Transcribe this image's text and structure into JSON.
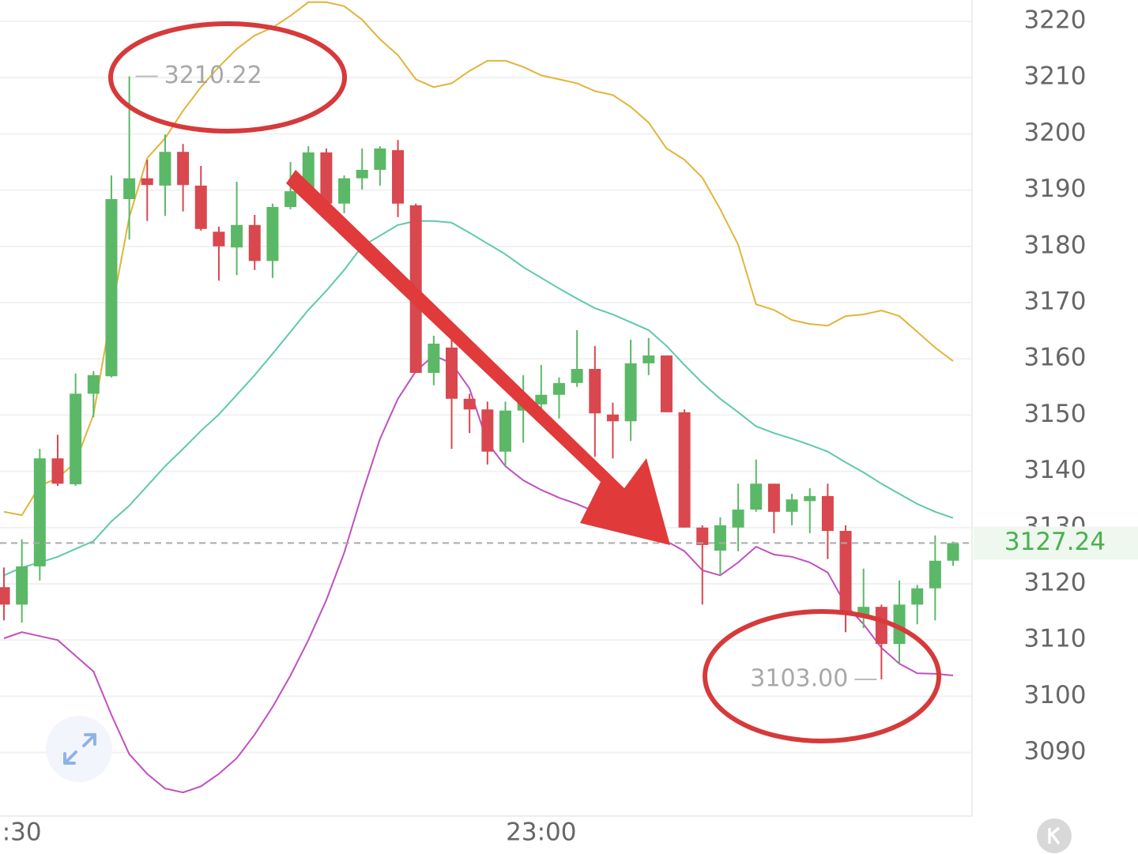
{
  "chart_data": {
    "type": "candlestick",
    "categories": [
      null,
      ":30",
      null,
      null,
      null,
      null,
      null,
      null,
      null,
      null,
      null,
      null,
      null,
      null,
      null,
      null,
      null,
      null,
      null,
      null,
      null,
      null,
      null,
      null,
      null,
      null,
      null,
      null,
      null,
      null,
      "23:00",
      null,
      null,
      null,
      null,
      null,
      null,
      null,
      null,
      null,
      null,
      null,
      null,
      null,
      null,
      null,
      null,
      null,
      null,
      null,
      null,
      null,
      null,
      null
    ],
    "open": [
      3119.4,
      3116.3,
      3123.1,
      3142.3,
      3137.7,
      3153.8,
      3156.9,
      3188.4,
      3192.1,
      3190.8,
      3196.8,
      3190.8,
      3182.6,
      3179.8,
      3183.8,
      3177.4,
      3187.0,
      3189.8,
      3196.7,
      3187.6,
      3192.1,
      3193.6,
      3197.1,
      3187.3,
      3157.5,
      3162.0,
      3152.9,
      3151.0,
      3143.5,
      3150.8,
      3151.9,
      3153.6,
      3155.7,
      3158.2,
      3150.1,
      3148.9,
      3159.2,
      3160.6,
      3150.5,
      3130.0,
      3125.9,
      3130.0,
      3133.2,
      3137.8,
      3132.8,
      3134.7,
      3135.6,
      3129.4,
      3114.5,
      3115.9,
      3109.3,
      3116.3,
      3119.2,
      3124.1
    ],
    "high": [
      3122.9,
      3127.9,
      3144.0,
      3146.5,
      3157.4,
      3157.8,
      3192.6,
      3210.22,
      3195.4,
      3199.9,
      3198.2,
      3194.3,
      3183.5,
      3191.5,
      3185.6,
      3187.6,
      3195.0,
      3197.8,
      3197.4,
      3192.6,
      3197.4,
      3197.8,
      3198.9,
      3187.6,
      3164.1,
      3164.1,
      3153.8,
      3152.4,
      3152.4,
      3157.1,
      3158.9,
      3156.7,
      3165.1,
      3162.3,
      3152.2,
      3163.4,
      3163.7,
      3160.6,
      3151.0,
      3130.4,
      3131.8,
      3137.8,
      3142.1,
      3137.8,
      3136.0,
      3137.0,
      3137.8,
      3130.4,
      3122.7,
      3116.3,
      3120.6,
      3119.8,
      3128.6,
      3127.5
    ],
    "low": [
      3113.5,
      3113.1,
      3120.6,
      3137.4,
      3137.4,
      3149.6,
      3156.7,
      3181.2,
      3184.5,
      3185.4,
      3186.2,
      3182.8,
      3173.9,
      3174.9,
      3175.8,
      3174.4,
      3186.6,
      3189.4,
      3187.3,
      3185.9,
      3190.1,
      3190.8,
      3185.2,
      3157.5,
      3155.3,
      3144.0,
      3146.8,
      3141.2,
      3140.9,
      3145.1,
      3149.4,
      3149.4,
      3155.0,
      3142.6,
      3142.3,
      3145.4,
      3157.1,
      3150.5,
      3130.0,
      3116.3,
      3121.5,
      3125.8,
      3132.8,
      3129.0,
      3130.4,
      3129.0,
      3124.4,
      3111.4,
      3112.1,
      3103.0,
      3105.8,
      3112.8,
      3113.5,
      3123.2
    ],
    "close": [
      3116.3,
      3123.1,
      3142.3,
      3137.8,
      3153.8,
      3157.1,
      3188.4,
      3192.1,
      3190.9,
      3196.8,
      3190.9,
      3183.1,
      3180.0,
      3183.8,
      3177.4,
      3187.0,
      3189.8,
      3196.7,
      3187.6,
      3192.1,
      3193.6,
      3197.4,
      3187.6,
      3157.5,
      3162.7,
      3152.9,
      3151.0,
      3143.5,
      3150.8,
      3153.1,
      3153.6,
      3155.7,
      3158.2,
      3150.3,
      3148.9,
      3159.2,
      3160.6,
      3150.5,
      3130.0,
      3126.9,
      3130.4,
      3133.2,
      3137.8,
      3132.8,
      3135.0,
      3135.6,
      3129.4,
      3114.5,
      3115.9,
      3109.3,
      3116.3,
      3119.2,
      3124.1,
      3127.24
    ],
    "up_color": "#5bb867",
    "down_color": "#d9474f",
    "lines": [
      {
        "color": "#e3b43a",
        "values": [
          3132.8,
          3132.2,
          3137.4,
          3138.8,
          3141.6,
          3150.1,
          3168.3,
          3185.2,
          3195.7,
          3199.2,
          3204.1,
          3208.3,
          3211.9,
          3215.1,
          3217.5,
          3218.9,
          3221.0,
          3223.4,
          3223.4,
          3222.7,
          3220.3,
          3216.8,
          3214.0,
          3209.7,
          3208.3,
          3209.0,
          3211.2,
          3213.0,
          3213.0,
          3211.9,
          3210.4,
          3209.7,
          3209.0,
          3207.6,
          3206.9,
          3204.8,
          3202.0,
          3197.4,
          3195.4,
          3192.2,
          3186.6,
          3180.3,
          3169.7,
          3168.7,
          3166.9,
          3166.2,
          3165.9,
          3167.6,
          3167.9,
          3168.6,
          3167.6,
          3164.8,
          3162.0,
          3159.6
        ]
      },
      {
        "color": "#5ec9ad",
        "values": [
          3121.5,
          3122.9,
          3123.8,
          3124.8,
          3126.2,
          3127.6,
          3131.1,
          3133.9,
          3137.4,
          3140.9,
          3144.0,
          3147.2,
          3150.1,
          3153.6,
          3157.1,
          3160.9,
          3164.8,
          3168.7,
          3172.1,
          3175.8,
          3180.0,
          3181.9,
          3183.8,
          3184.5,
          3184.5,
          3184.2,
          3182.4,
          3180.5,
          3178.6,
          3176.3,
          3174.4,
          3172.5,
          3170.7,
          3169.0,
          3167.9,
          3166.5,
          3165.1,
          3162.3,
          3158.9,
          3155.7,
          3152.9,
          3150.5,
          3148.0,
          3146.8,
          3145.8,
          3144.7,
          3143.5,
          3141.6,
          3139.8,
          3137.8,
          3136.0,
          3134.2,
          3132.8,
          3131.7
        ]
      },
      {
        "color": "#c14fc0",
        "values": [
          3110.3,
          3111.4,
          3110.7,
          3110.0,
          3107.2,
          3104.4,
          3096.7,
          3089.7,
          3086.2,
          3083.6,
          3082.9,
          3084.0,
          3086.2,
          3089.0,
          3093.2,
          3098.1,
          3103.7,
          3110.0,
          3117.1,
          3125.5,
          3136.0,
          3145.8,
          3152.9,
          3157.8,
          3160.6,
          3159.2,
          3154.7,
          3145.1,
          3140.9,
          3138.4,
          3136.7,
          3135.3,
          3134.2,
          3132.8,
          3131.7,
          3130.4,
          3129.0,
          3127.6,
          3125.8,
          3122.4,
          3121.5,
          3123.8,
          3126.6,
          3125.2,
          3124.8,
          3123.8,
          3122.0,
          3116.3,
          3112.8,
          3108.6,
          3105.8,
          3104.1,
          3104.0,
          3103.7
        ]
      }
    ],
    "annotations": [
      {
        "value": 3210.22,
        "label": "3210.22",
        "at": "high"
      },
      {
        "value": 3103.0,
        "label": "3103.00",
        "at": "low"
      }
    ],
    "last_price": {
      "value": 3127.24,
      "label": "3127.24",
      "color": "#4caf50"
    },
    "ylim": [
      3078.7,
      3223.8
    ],
    "yticks": [
      3090,
      3100,
      3110,
      3120,
      3130,
      3140,
      3150,
      3160,
      3170,
      3180,
      3190,
      3200,
      3210,
      3220
    ],
    "grid": true
  }
}
